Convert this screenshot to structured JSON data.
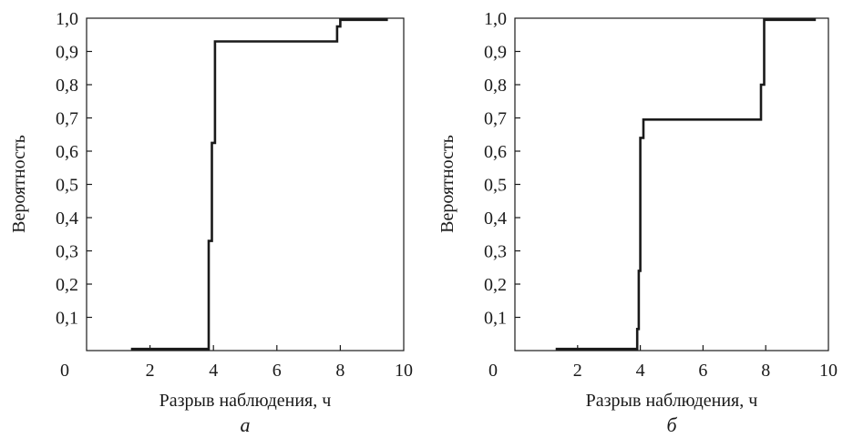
{
  "chart_data": [
    {
      "type": "line",
      "caption": "а",
      "xlabel": "Разрыв наблюдения, ч",
      "ylabel": "Вероятность",
      "xlim": [
        0,
        10
      ],
      "ylim": [
        0,
        1.0
      ],
      "x_ticks": [
        0,
        2,
        4,
        6,
        8,
        10
      ],
      "x_tick_labels": [
        "0",
        "2",
        "4",
        "6",
        "8",
        "10"
      ],
      "y_ticks": [
        0.1,
        0.2,
        0.3,
        0.4,
        0.5,
        0.6,
        0.7,
        0.8,
        0.9,
        1.0
      ],
      "y_tick_labels": [
        "0,1",
        "0,2",
        "0,3",
        "0,4",
        "0,5",
        "0,6",
        "0,7",
        "0,8",
        "0,9",
        "1,0"
      ],
      "grid": false,
      "legend": "none",
      "step": true,
      "series": [
        {
          "x": [
            1.4,
            3.85,
            3.85,
            3.95,
            3.95,
            4.05,
            4.05,
            7.9,
            7.9,
            8.0,
            8.0,
            9.5
          ],
          "y": [
            0.005,
            0.005,
            0.33,
            0.33,
            0.625,
            0.625,
            0.93,
            0.93,
            0.975,
            0.975,
            0.995,
            0.995
          ]
        }
      ]
    },
    {
      "type": "line",
      "caption": "б",
      "xlabel": "Разрыв наблюдения, ч",
      "ylabel": "Вероятность",
      "xlim": [
        0,
        10
      ],
      "ylim": [
        0,
        1.0
      ],
      "x_ticks": [
        0,
        2,
        4,
        6,
        8,
        10
      ],
      "x_tick_labels": [
        "0",
        "2",
        "4",
        "6",
        "8",
        "10"
      ],
      "y_ticks": [
        0.1,
        0.2,
        0.3,
        0.4,
        0.5,
        0.6,
        0.7,
        0.8,
        0.9,
        1.0
      ],
      "y_tick_labels": [
        "0,1",
        "0,2",
        "0,3",
        "0,4",
        "0,5",
        "0,6",
        "0,7",
        "0,8",
        "0,9",
        "1,0"
      ],
      "grid": false,
      "legend": "none",
      "step": true,
      "series": [
        {
          "x": [
            1.3,
            3.9,
            3.9,
            3.95,
            3.95,
            4.0,
            4.0,
            4.1,
            4.1,
            7.85,
            7.85,
            7.95,
            7.95,
            9.6
          ],
          "y": [
            0.005,
            0.005,
            0.065,
            0.065,
            0.24,
            0.24,
            0.64,
            0.64,
            0.695,
            0.695,
            0.8,
            0.8,
            0.995,
            0.995
          ]
        }
      ]
    }
  ]
}
